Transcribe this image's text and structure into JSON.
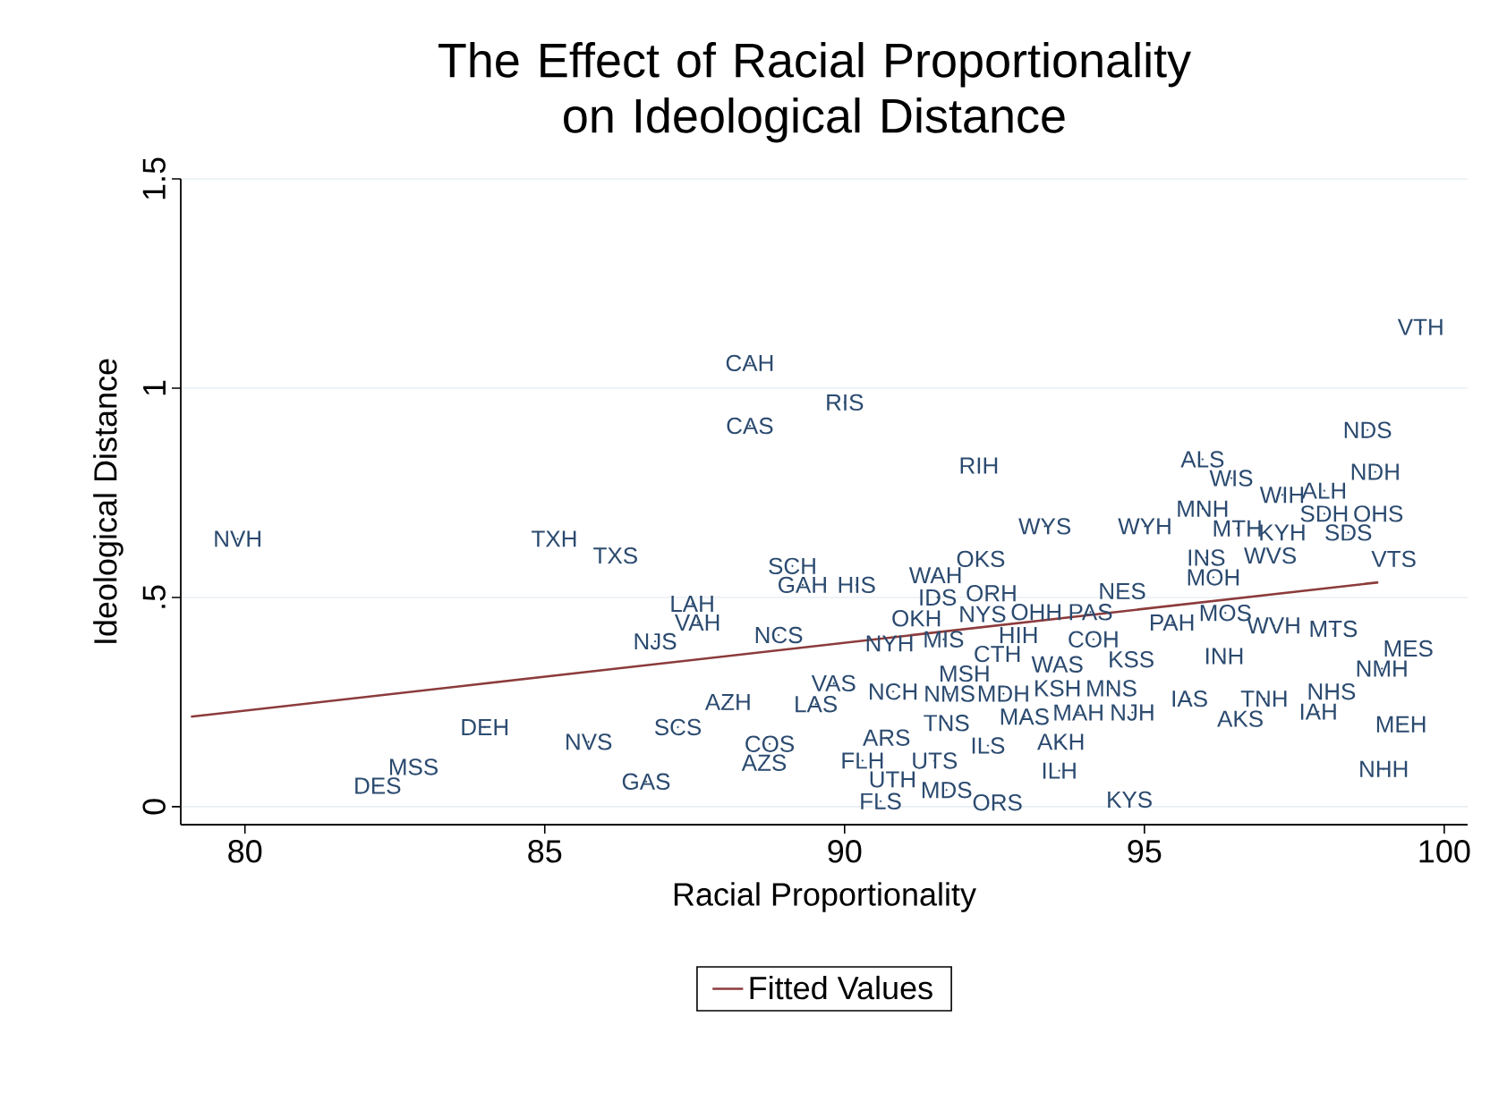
{
  "chart_data": {
    "type": "scatter",
    "title": "The Effect of Racial Proportionality on Ideological Distance",
    "xlabel": "Racial Proportionality",
    "ylabel": "Ideological Distance",
    "xlim": [
      78.93,
      100.39
    ],
    "ylim": [
      -0.043,
      1.5
    ],
    "xticks": [
      80,
      85,
      90,
      95,
      100
    ],
    "yticks": [
      0,
      {
        "value": 0.5,
        "label": ".5"
      },
      1,
      1.5
    ],
    "grid": "y",
    "legend": "bottom",
    "series": [
      {
        "type": "scatter",
        "marker": "none",
        "color": "#2b4a6f",
        "x": [
          88.42,
          88.42,
          79.88,
          85.16,
          86.18,
          89.13,
          89.3,
          90.2,
          87.46,
          87.55,
          86.84,
          88.9,
          88.06,
          89.82,
          89.52,
          84.0,
          85.73,
          87.22,
          88.75,
          88.66,
          82.81,
          82.21,
          86.69,
          99.61,
          90.0,
          98.72,
          92.24,
          95.97,
          96.45,
          98.85,
          98.0,
          95.97,
          97.3,
          98.0,
          98.4,
          98.9,
          96.55,
          97.3,
          93.34,
          95.01,
          96.03,
          96.15,
          97.1,
          99.16,
          91.52,
          92.27,
          94.63,
          91.55,
          92.45,
          92.3,
          93.2,
          94.1,
          91.2,
          90.75,
          91.65,
          92.55,
          92.9,
          94.15,
          95.46,
          96.35,
          97.16,
          98.15,
          99.4,
          98.96,
          96.33,
          94.78,
          93.55,
          92.0,
          98.12,
          95.75,
          97.0,
          97.9,
          96.6,
          99.28,
          98.99,
          90.81,
          91.75,
          92.65,
          93.55,
          94.45,
          94.8,
          93.0,
          93.9,
          91.7,
          90.7,
          92.39,
          93.61,
          91.5,
          90.3,
          90.8,
          93.58,
          94.75,
          90.6,
          91.7,
          92.55
        ],
        "values": [
          1.06,
          0.91,
          0.64,
          0.64,
          0.6,
          0.575,
          0.53,
          0.53,
          0.485,
          0.44,
          0.395,
          0.41,
          0.25,
          0.295,
          0.245,
          0.19,
          0.155,
          0.19,
          0.15,
          0.105,
          0.095,
          0.05,
          0.06,
          1.146,
          0.966,
          0.9,
          0.815,
          0.83,
          0.785,
          0.8,
          0.755,
          0.712,
          0.745,
          0.7,
          0.655,
          0.7,
          0.665,
          0.655,
          0.67,
          0.67,
          0.595,
          0.548,
          0.6,
          0.592,
          0.553,
          0.592,
          0.515,
          0.5,
          0.51,
          0.46,
          0.465,
          0.465,
          0.45,
          0.39,
          0.4,
          0.365,
          0.41,
          0.4,
          0.44,
          0.463,
          0.433,
          0.425,
          0.378,
          0.33,
          0.36,
          0.352,
          0.34,
          0.318,
          0.275,
          0.258,
          0.258,
          0.227,
          0.21,
          0.197,
          0.09,
          0.275,
          0.27,
          0.27,
          0.283,
          0.283,
          0.225,
          0.215,
          0.225,
          0.2,
          0.165,
          0.146,
          0.155,
          0.11,
          0.11,
          0.065,
          0.086,
          0.017,
          0.013,
          0.04,
          0.01
        ],
        "value_labels": [
          "CAH",
          "CAS",
          "NVH",
          "TXH",
          "TXS",
          "SCH",
          "GAH",
          "HIS",
          "LAH",
          "VAH",
          "NJS",
          "NCS",
          "AZH",
          "VAS",
          "LAS",
          "DEH",
          "NVS",
          "SCS",
          "COS",
          "AZS",
          "MSS",
          "DES",
          "GAS",
          "VTH",
          "RIS",
          "NDS",
          "RIH",
          "ALS",
          "WIS",
          "NDH",
          "ALH",
          "MNH",
          "WIH",
          "SDH",
          "SDS",
          "OHS",
          "MTH",
          "KYH",
          "WYS",
          "WYH",
          "INS",
          "MOH",
          "WVS",
          "VTS",
          "WAH",
          "OKS",
          "NES",
          "IDS",
          "ORH",
          "NYS",
          "OHH",
          "PAS",
          "OKH",
          "NYH",
          "MIS",
          "CTH",
          "HIH",
          "COH",
          "PAH",
          "MOS",
          "WVH",
          "MTS",
          "MES",
          "NMH",
          "INH",
          "KSS",
          "WAS",
          "MSH",
          "NHS",
          "IAS",
          "TNH",
          "IAH",
          "AKS",
          "MEH",
          "NHH",
          "NCH",
          "NMS",
          "MDH",
          "KSH",
          "MNS",
          "NJH",
          "MAS",
          "MAH",
          "TNS",
          "ARS",
          "ILS",
          "AKH",
          "UTS",
          "FLH",
          "UTH",
          "ILH",
          "KYS",
          "FLS",
          "MDS",
          "ORS"
        ]
      },
      {
        "type": "line",
        "name": "Fitted Values",
        "color": "#8c3b3b",
        "line_style": "solid",
        "x": [
          79.1,
          98.9
        ],
        "values": [
          0.215,
          0.536
        ]
      }
    ]
  }
}
